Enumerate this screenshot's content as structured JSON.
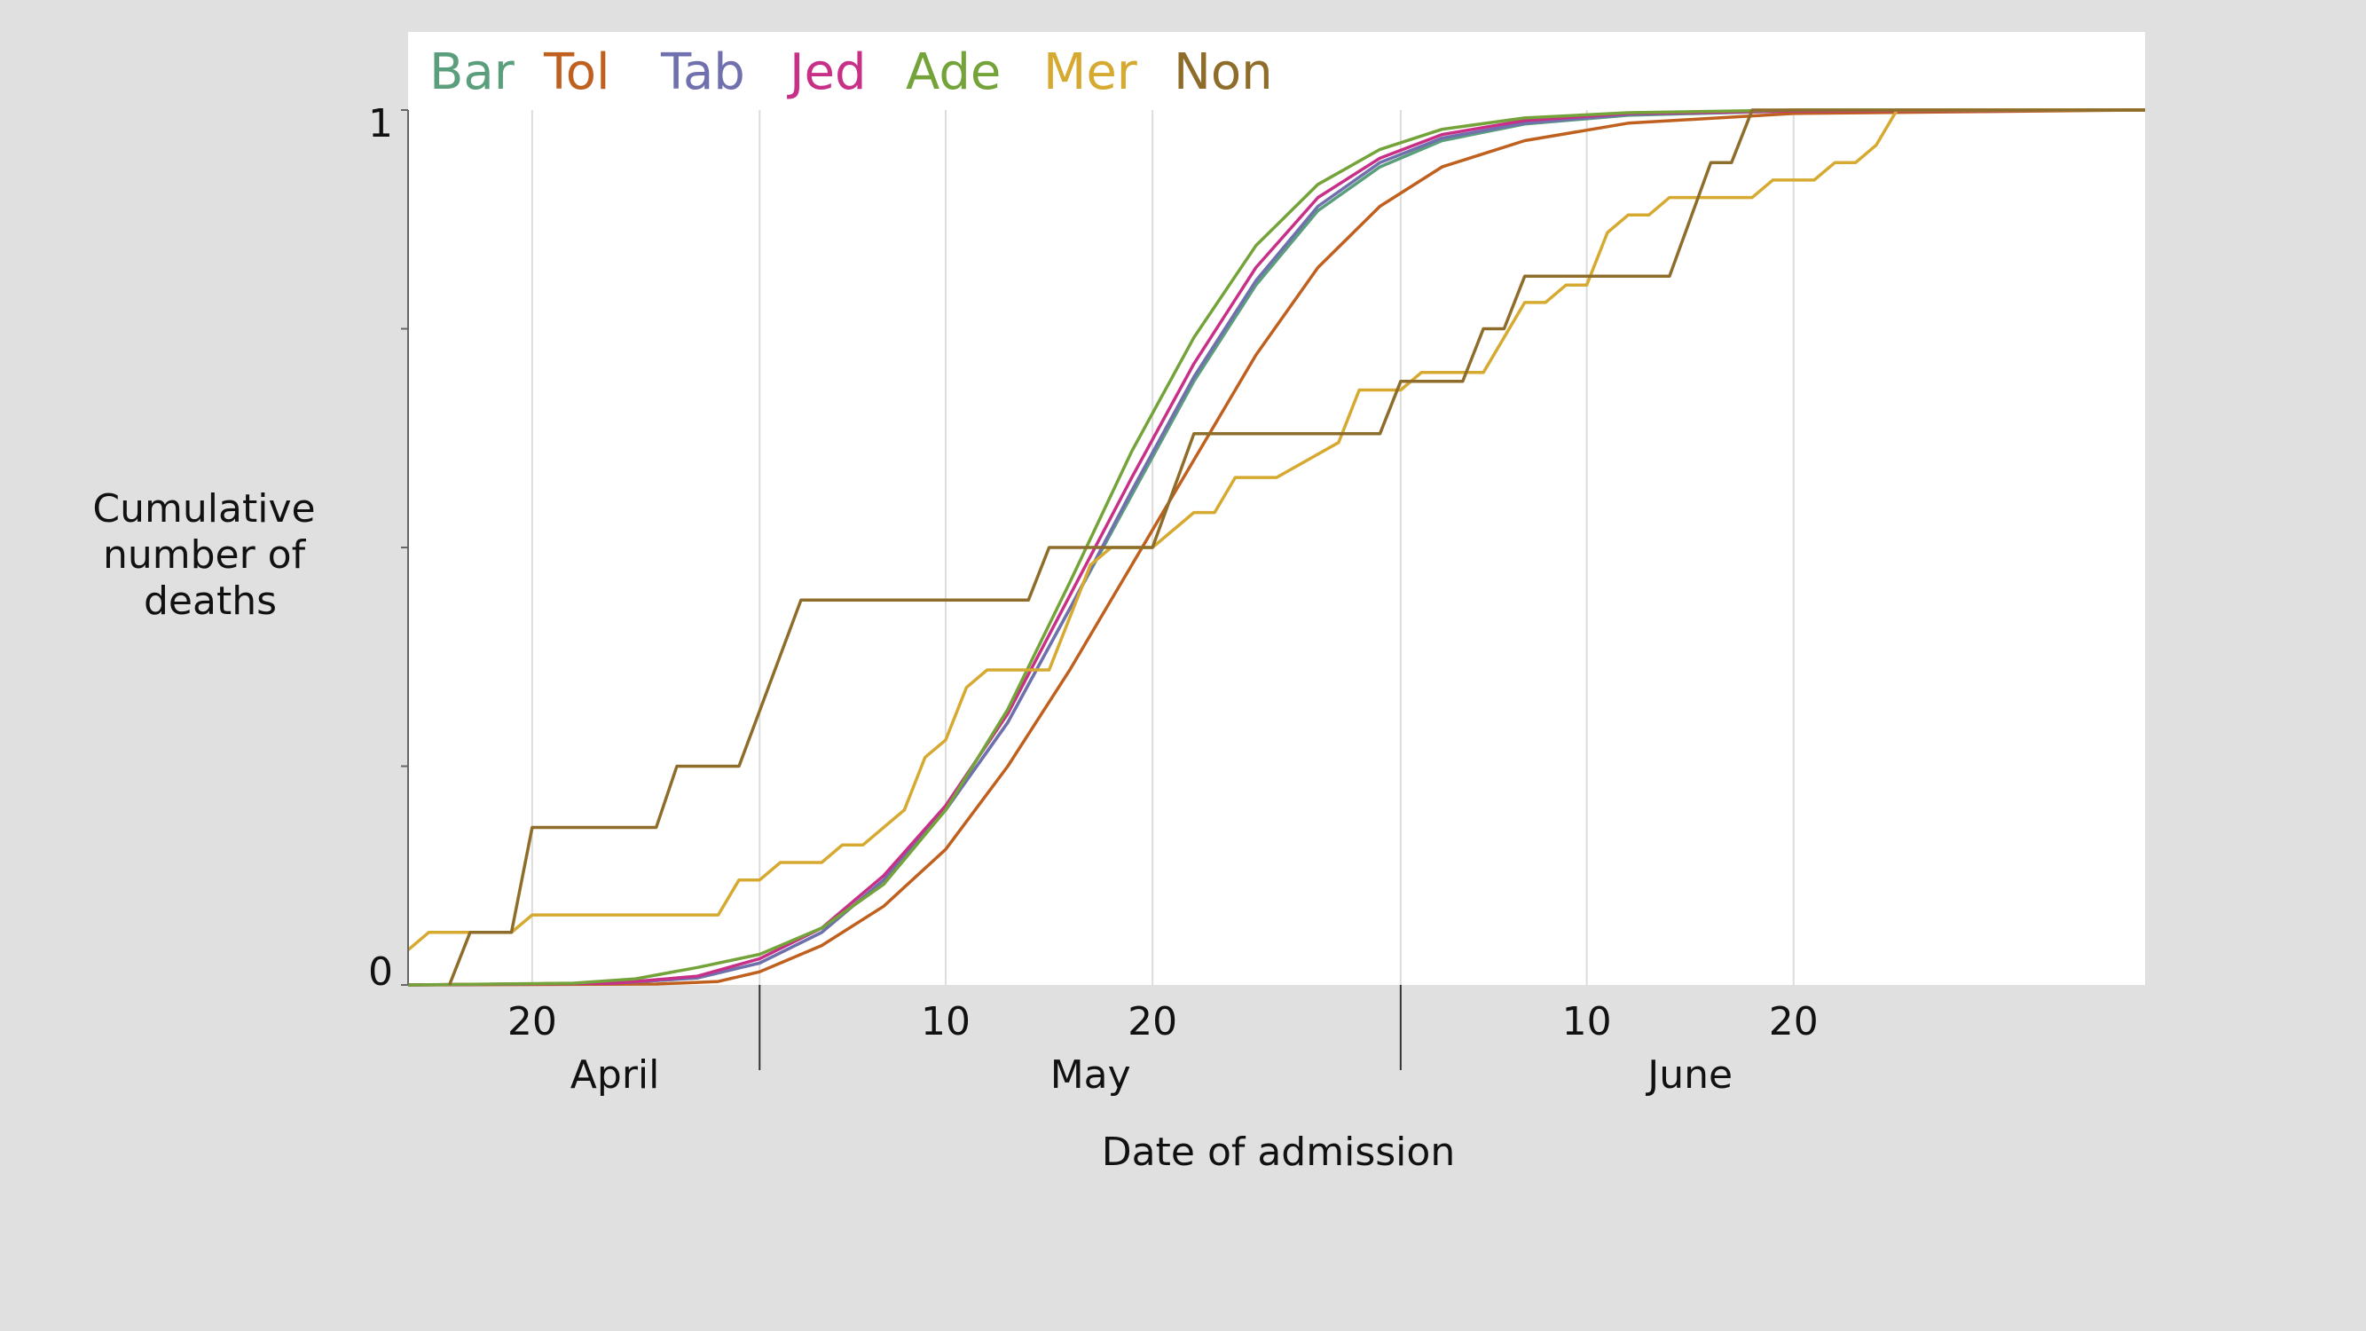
{
  "chart_data": {
    "type": "line",
    "title": "",
    "xlabel": "Date of admission",
    "ylabel_lines": [
      "Cumulative",
      "number of",
      "deaths"
    ],
    "x_unit": "day",
    "xlim": [
      "2020-04-14",
      "2020-07-07"
    ],
    "ylim": [
      0,
      1
    ],
    "ytick_labels": [
      {
        "value": 0,
        "label": "0"
      },
      {
        "value": 1,
        "label": "1"
      }
    ],
    "yticks_minor": [
      0.25,
      0.5,
      0.75
    ],
    "xtick_labels": [
      {
        "date": "2020-04-20",
        "label": "20"
      },
      {
        "date": "2020-05-10",
        "label": "10"
      },
      {
        "date": "2020-05-20",
        "label": "20"
      },
      {
        "date": "2020-06-10",
        "label": "10"
      },
      {
        "date": "2020-06-20",
        "label": "20"
      }
    ],
    "month_boundaries": [
      "2020-05-01",
      "2020-06-01"
    ],
    "month_labels": [
      {
        "date": "2020-04-24",
        "label": "April"
      },
      {
        "date": "2020-05-17",
        "label": "May"
      },
      {
        "date": "2020-06-15",
        "label": "June"
      }
    ],
    "gridlines": [
      "2020-04-20",
      "2020-05-01",
      "2020-05-10",
      "2020-05-20",
      "2020-06-01",
      "2020-06-10",
      "2020-06-20"
    ],
    "grid": true,
    "legend_position": "top-left",
    "series": [
      {
        "name": "Bar",
        "color": "#5a9e7c",
        "points": [
          [
            "2020-04-14",
            0
          ],
          [
            "2020-04-24",
            0.002
          ],
          [
            "2020-04-28",
            0.008
          ],
          [
            "2020-05-01",
            0.025
          ],
          [
            "2020-05-04",
            0.06
          ],
          [
            "2020-05-07",
            0.12
          ],
          [
            "2020-05-10",
            0.2
          ],
          [
            "2020-05-13",
            0.3
          ],
          [
            "2020-05-16",
            0.43
          ],
          [
            "2020-05-19",
            0.56
          ],
          [
            "2020-05-22",
            0.69
          ],
          [
            "2020-05-25",
            0.8
          ],
          [
            "2020-05-28",
            0.885
          ],
          [
            "2020-05-31",
            0.935
          ],
          [
            "2020-06-03",
            0.965
          ],
          [
            "2020-06-07",
            0.984
          ],
          [
            "2020-06-12",
            0.994
          ],
          [
            "2020-06-20",
            0.999
          ],
          [
            "2020-07-07",
            1
          ]
        ]
      },
      {
        "name": "Tol",
        "color": "#c0601e",
        "points": [
          [
            "2020-04-14",
            0
          ],
          [
            "2020-04-26",
            0.001
          ],
          [
            "2020-04-29",
            0.004
          ],
          [
            "2020-05-01",
            0.015
          ],
          [
            "2020-05-04",
            0.045
          ],
          [
            "2020-05-07",
            0.09
          ],
          [
            "2020-05-10",
            0.155
          ],
          [
            "2020-05-13",
            0.25
          ],
          [
            "2020-05-16",
            0.36
          ],
          [
            "2020-05-19",
            0.48
          ],
          [
            "2020-05-22",
            0.6
          ],
          [
            "2020-05-25",
            0.72
          ],
          [
            "2020-05-28",
            0.82
          ],
          [
            "2020-05-31",
            0.89
          ],
          [
            "2020-06-03",
            0.935
          ],
          [
            "2020-06-07",
            0.965
          ],
          [
            "2020-06-12",
            0.985
          ],
          [
            "2020-06-20",
            0.996
          ],
          [
            "2020-07-07",
            1
          ]
        ]
      },
      {
        "name": "Tab",
        "color": "#6f70ad",
        "points": [
          [
            "2020-04-14",
            0
          ],
          [
            "2020-04-24",
            0.002
          ],
          [
            "2020-04-28",
            0.008
          ],
          [
            "2020-05-01",
            0.025
          ],
          [
            "2020-05-04",
            0.06
          ],
          [
            "2020-05-07",
            0.12
          ],
          [
            "2020-05-10",
            0.2
          ],
          [
            "2020-05-13",
            0.3
          ],
          [
            "2020-05-16",
            0.43
          ],
          [
            "2020-05-19",
            0.565
          ],
          [
            "2020-05-22",
            0.695
          ],
          [
            "2020-05-25",
            0.805
          ],
          [
            "2020-05-28",
            0.89
          ],
          [
            "2020-05-31",
            0.94
          ],
          [
            "2020-06-03",
            0.968
          ],
          [
            "2020-06-07",
            0.985
          ],
          [
            "2020-06-12",
            0.995
          ],
          [
            "2020-06-20",
            0.999
          ],
          [
            "2020-07-07",
            1
          ]
        ]
      },
      {
        "name": "Jed",
        "color": "#c83088",
        "points": [
          [
            "2020-04-14",
            0
          ],
          [
            "2020-04-24",
            0.002
          ],
          [
            "2020-04-28",
            0.01
          ],
          [
            "2020-05-01",
            0.03
          ],
          [
            "2020-05-04",
            0.065
          ],
          [
            "2020-05-07",
            0.125
          ],
          [
            "2020-05-10",
            0.205
          ],
          [
            "2020-05-13",
            0.31
          ],
          [
            "2020-05-16",
            0.445
          ],
          [
            "2020-05-19",
            0.58
          ],
          [
            "2020-05-22",
            0.71
          ],
          [
            "2020-05-25",
            0.82
          ],
          [
            "2020-05-28",
            0.9
          ],
          [
            "2020-05-31",
            0.945
          ],
          [
            "2020-06-03",
            0.972
          ],
          [
            "2020-06-07",
            0.988
          ],
          [
            "2020-06-12",
            0.996
          ],
          [
            "2020-06-20",
            0.999
          ],
          [
            "2020-07-07",
            1
          ]
        ]
      },
      {
        "name": "Ade",
        "color": "#74a33a",
        "points": [
          [
            "2020-04-14",
            0
          ],
          [
            "2020-04-22",
            0.002
          ],
          [
            "2020-04-25",
            0.007
          ],
          [
            "2020-04-28",
            0.02
          ],
          [
            "2020-05-01",
            0.035
          ],
          [
            "2020-05-04",
            0.065
          ],
          [
            "2020-05-07",
            0.115
          ],
          [
            "2020-05-10",
            0.2
          ],
          [
            "2020-05-13",
            0.315
          ],
          [
            "2020-05-16",
            0.46
          ],
          [
            "2020-05-19",
            0.61
          ],
          [
            "2020-05-22",
            0.74
          ],
          [
            "2020-05-25",
            0.845
          ],
          [
            "2020-05-28",
            0.915
          ],
          [
            "2020-05-31",
            0.955
          ],
          [
            "2020-06-03",
            0.978
          ],
          [
            "2020-06-07",
            0.991
          ],
          [
            "2020-06-12",
            0.997
          ],
          [
            "2020-06-20",
            1
          ],
          [
            "2020-07-07",
            1
          ]
        ]
      },
      {
        "name": "Mer",
        "color": "#d6aa30",
        "points": [
          [
            "2020-04-14",
            0.04
          ],
          [
            "2020-04-15",
            0.06
          ],
          [
            "2020-04-19",
            0.06
          ],
          [
            "2020-04-20",
            0.08
          ],
          [
            "2020-04-29",
            0.08
          ],
          [
            "2020-04-30",
            0.12
          ],
          [
            "2020-05-01",
            0.12
          ],
          [
            "2020-05-02",
            0.14
          ],
          [
            "2020-05-04",
            0.14
          ],
          [
            "2020-05-05",
            0.16
          ],
          [
            "2020-05-06",
            0.16
          ],
          [
            "2020-05-08",
            0.2
          ],
          [
            "2020-05-09",
            0.26
          ],
          [
            "2020-05-10",
            0.28
          ],
          [
            "2020-05-11",
            0.34
          ],
          [
            "2020-05-12",
            0.36
          ],
          [
            "2020-05-15",
            0.36
          ],
          [
            "2020-05-17",
            0.48
          ],
          [
            "2020-05-18",
            0.5
          ],
          [
            "2020-05-20",
            0.5
          ],
          [
            "2020-05-22",
            0.54
          ],
          [
            "2020-05-23",
            0.54
          ],
          [
            "2020-05-24",
            0.58
          ],
          [
            "2020-05-26",
            0.58
          ],
          [
            "2020-05-29",
            0.62
          ],
          [
            "2020-05-30",
            0.68
          ],
          [
            "2020-06-01",
            0.68
          ],
          [
            "2020-06-02",
            0.7
          ],
          [
            "2020-06-05",
            0.7
          ],
          [
            "2020-06-07",
            0.78
          ],
          [
            "2020-06-08",
            0.78
          ],
          [
            "2020-06-09",
            0.8
          ],
          [
            "2020-06-10",
            0.8
          ],
          [
            "2020-06-11",
            0.86
          ],
          [
            "2020-06-12",
            0.88
          ],
          [
            "2020-06-13",
            0.88
          ],
          [
            "2020-06-14",
            0.9
          ],
          [
            "2020-06-18",
            0.9
          ],
          [
            "2020-06-19",
            0.92
          ],
          [
            "2020-06-21",
            0.92
          ],
          [
            "2020-06-22",
            0.94
          ],
          [
            "2020-06-23",
            0.94
          ],
          [
            "2020-06-24",
            0.96
          ],
          [
            "2020-06-25",
            1
          ],
          [
            "2020-07-07",
            1
          ]
        ]
      },
      {
        "name": "Non",
        "color": "#8e6d2a",
        "points": [
          [
            "2020-04-16",
            0
          ],
          [
            "2020-04-17",
            0.06
          ],
          [
            "2020-04-19",
            0.06
          ],
          [
            "2020-04-20",
            0.18
          ],
          [
            "2020-04-26",
            0.18
          ],
          [
            "2020-04-27",
            0.25
          ],
          [
            "2020-04-30",
            0.25
          ],
          [
            "2020-05-03",
            0.44
          ],
          [
            "2020-05-14",
            0.44
          ],
          [
            "2020-05-15",
            0.5
          ],
          [
            "2020-05-20",
            0.5
          ],
          [
            "2020-05-22",
            0.63
          ],
          [
            "2020-05-31",
            0.63
          ],
          [
            "2020-06-01",
            0.69
          ],
          [
            "2020-06-04",
            0.69
          ],
          [
            "2020-06-05",
            0.75
          ],
          [
            "2020-06-06",
            0.75
          ],
          [
            "2020-06-07",
            0.81
          ],
          [
            "2020-06-14",
            0.81
          ],
          [
            "2020-06-16",
            0.94
          ],
          [
            "2020-06-17",
            0.94
          ],
          [
            "2020-06-18",
            1
          ],
          [
            "2020-07-07",
            1
          ]
        ]
      }
    ]
  }
}
